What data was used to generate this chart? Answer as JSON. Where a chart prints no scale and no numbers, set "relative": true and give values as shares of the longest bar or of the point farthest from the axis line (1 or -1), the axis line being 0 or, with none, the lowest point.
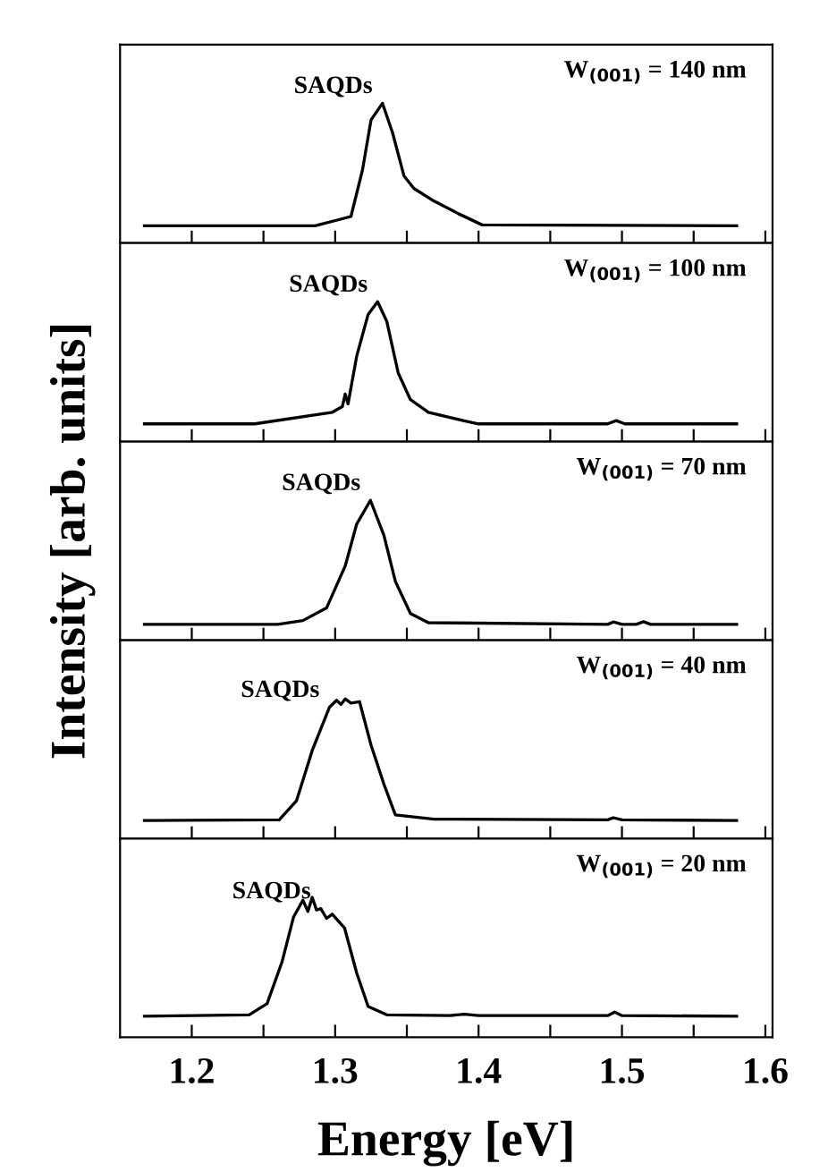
{
  "chart_data": [
    {
      "type": "line",
      "relative": true,
      "tick_labels": false,
      "xlim": [
        1.15,
        1.605
      ],
      "xticks": [
        1.2,
        {
          "value": 1.25,
          "label": null
        },
        1.3,
        {
          "value": 1.35,
          "label": null
        },
        1.4,
        {
          "value": 1.45,
          "label": null
        },
        1.5,
        {
          "value": 1.55,
          "label": null
        },
        1.6
      ],
      "annotations": [
        {
          "text": "SAQDs",
          "x": 1.333,
          "y": 1.0
        },
        "W$_{(001)}$ = 140 nm"
      ],
      "series": [
        {
          "color": "#000000",
          "x": [
            1.167,
            1.286,
            1.311,
            1.319,
            1.325,
            1.333,
            1.34,
            1.348,
            1.355,
            1.369,
            1.386,
            1.4025,
            1.58
          ],
          "values": [
            0.124,
            0.124,
            0.19,
            0.52,
            0.88,
            1.0,
            0.79,
            0.48,
            0.39,
            0.3,
            0.21,
            0.13,
            0.124
          ]
        }
      ]
    },
    {
      "type": "line",
      "relative": true,
      "tick_labels": false,
      "xlim": [
        1.15,
        1.605
      ],
      "xticks": [
        1.2,
        {
          "value": 1.25,
          "label": null
        },
        1.3,
        {
          "value": 1.35,
          "label": null
        },
        1.4,
        {
          "value": 1.45,
          "label": null
        },
        1.5,
        {
          "value": 1.55,
          "label": null
        },
        1.6
      ],
      "annotations": [
        {
          "text": "SAQDs",
          "x": 1.3296,
          "y": 1.0
        },
        "W$_{(001)}$ = 100 nm"
      ],
      "series": [
        {
          "color": "#000000",
          "x": [
            1.167,
            1.244,
            1.298,
            1.305,
            1.307,
            1.309,
            1.315,
            1.323,
            1.3296,
            1.336,
            1.344,
            1.3525,
            1.365,
            1.39,
            1.4,
            1.49,
            1.496,
            1.502,
            1.58
          ],
          "values": [
            0.127,
            0.127,
            0.21,
            0.25,
            0.34,
            0.27,
            0.61,
            0.91,
            1.0,
            0.86,
            0.49,
            0.3,
            0.21,
            0.148,
            0.127,
            0.127,
            0.15,
            0.127,
            0.127
          ]
        }
      ]
    },
    {
      "type": "line",
      "relative": true,
      "tick_labels": false,
      "ylabel": "Intensity [arb. units]",
      "xlim": [
        1.15,
        1.605
      ],
      "xticks": [
        1.2,
        {
          "value": 1.25,
          "label": null
        },
        1.3,
        {
          "value": 1.35,
          "label": null
        },
        1.4,
        {
          "value": 1.45,
          "label": null
        },
        1.5,
        {
          "value": 1.55,
          "label": null
        },
        1.6
      ],
      "annotations": [
        {
          "text": "SAQDs",
          "x": 1.3246,
          "y": 1.0
        },
        "W$_{(001)}$ = 70 nm"
      ],
      "series": [
        {
          "color": "#000000",
          "x": [
            1.167,
            1.26,
            1.2775,
            1.294,
            1.307,
            1.315,
            1.3246,
            1.334,
            1.342,
            1.3525,
            1.365,
            1.49,
            1.494,
            1.5,
            1.51,
            1.515,
            1.52,
            1.58
          ],
          "values": [
            0.113,
            0.113,
            0.14,
            0.23,
            0.53,
            0.83,
            1.0,
            0.75,
            0.42,
            0.19,
            0.125,
            0.113,
            0.13,
            0.113,
            0.113,
            0.132,
            0.113,
            0.113
          ]
        }
      ]
    },
    {
      "type": "line",
      "relative": true,
      "tick_labels": false,
      "xlim": [
        1.15,
        1.605
      ],
      "xticks": [
        1.2,
        {
          "value": 1.25,
          "label": null
        },
        1.3,
        {
          "value": 1.35,
          "label": null
        },
        1.4,
        {
          "value": 1.45,
          "label": null
        },
        1.5,
        {
          "value": 1.55,
          "label": null
        },
        1.6
      ],
      "annotations": [
        {
          "text": "SAQDs",
          "x": 1.296,
          "y": 0.94
        },
        "W$_{(001)}$ = 40 nm"
      ],
      "series": [
        {
          "color": "#000000",
          "x": [
            1.167,
            1.261,
            1.273,
            1.284,
            1.296,
            1.301,
            1.304,
            1.307,
            1.311,
            1.317,
            1.325,
            1.334,
            1.342,
            1.369,
            1.49,
            1.494,
            1.5,
            1.58
          ],
          "values": [
            0.13,
            0.135,
            0.27,
            0.63,
            0.94,
            0.99,
            0.96,
            1.0,
            0.97,
            0.98,
            0.67,
            0.39,
            0.17,
            0.14,
            0.135,
            0.15,
            0.135,
            0.13
          ]
        }
      ]
    },
    {
      "type": "line",
      "relative": true,
      "tick_labels": "x",
      "xlabel": "Energy [eV]",
      "xlim": [
        1.15,
        1.605
      ],
      "xticks": [
        1.2,
        {
          "value": 1.25,
          "label": null
        },
        1.3,
        {
          "value": 1.35,
          "label": null
        },
        1.4,
        {
          "value": 1.45,
          "label": null
        },
        1.5,
        {
          "value": 1.55,
          "label": null
        },
        1.6
      ],
      "annotations": [
        {
          "text": "SAQDs",
          "x": 1.29,
          "y": 0.92
        },
        "W$_{(001)}$ = 20 nm"
      ],
      "series": [
        {
          "color": "#000000",
          "x": [
            1.167,
            1.24,
            1.2525,
            1.263,
            1.271,
            1.2775,
            1.281,
            1.284,
            1.287,
            1.29,
            1.294,
            1.298,
            1.3066,
            1.315,
            1.323,
            1.336,
            1.38,
            1.39,
            1.4,
            1.49,
            1.495,
            1.5,
            1.58
          ],
          "values": [
            0.15,
            0.16,
            0.24,
            0.54,
            0.86,
            0.98,
            0.9,
            1.0,
            0.91,
            0.92,
            0.85,
            0.88,
            0.78,
            0.46,
            0.22,
            0.16,
            0.155,
            0.165,
            0.155,
            0.155,
            0.18,
            0.155,
            0.15
          ]
        }
      ]
    }
  ]
}
